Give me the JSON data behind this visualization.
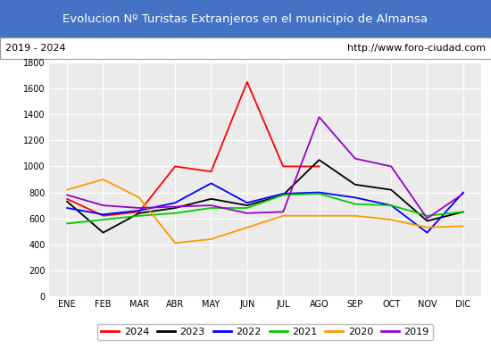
{
  "title": "Evolucion Nº Turistas Extranjeros en el municipio de Almansa",
  "subtitle_left": "2019 - 2024",
  "subtitle_right": "http://www.foro-ciudad.com",
  "title_bg": "#4472c4",
  "title_color": "white",
  "months": [
    "ENE",
    "FEB",
    "MAR",
    "ABR",
    "MAY",
    "JUN",
    "JUL",
    "AGO",
    "SEP",
    "OCT",
    "NOV",
    "DIC"
  ],
  "ylim": [
    0,
    1800
  ],
  "yticks": [
    0,
    200,
    400,
    600,
    800,
    1000,
    1200,
    1400,
    1600,
    1800
  ],
  "series": {
    "2024": {
      "color": "#ff0000",
      "values": [
        750,
        620,
        650,
        1000,
        960,
        1650,
        1000,
        1000,
        null,
        null,
        null,
        null
      ]
    },
    "2023": {
      "color": "#000000",
      "values": [
        730,
        490,
        640,
        680,
        750,
        700,
        780,
        1050,
        860,
        820,
        580,
        650
      ]
    },
    "2022": {
      "color": "#0000ff",
      "values": [
        680,
        630,
        660,
        720,
        870,
        720,
        790,
        800,
        760,
        700,
        490,
        800
      ]
    },
    "2021": {
      "color": "#00cc00",
      "values": [
        560,
        590,
        620,
        640,
        680,
        680,
        780,
        790,
        710,
        700,
        620,
        650
      ]
    },
    "2020": {
      "color": "#ff9900",
      "values": [
        820,
        900,
        760,
        410,
        440,
        530,
        620,
        620,
        620,
        590,
        530,
        540
      ]
    },
    "2019": {
      "color": "#9900cc",
      "values": [
        780,
        700,
        680,
        690,
        700,
        640,
        650,
        1380,
        1060,
        1000,
        600,
        790
      ]
    }
  },
  "legend_order": [
    "2024",
    "2023",
    "2022",
    "2021",
    "2020",
    "2019"
  ]
}
